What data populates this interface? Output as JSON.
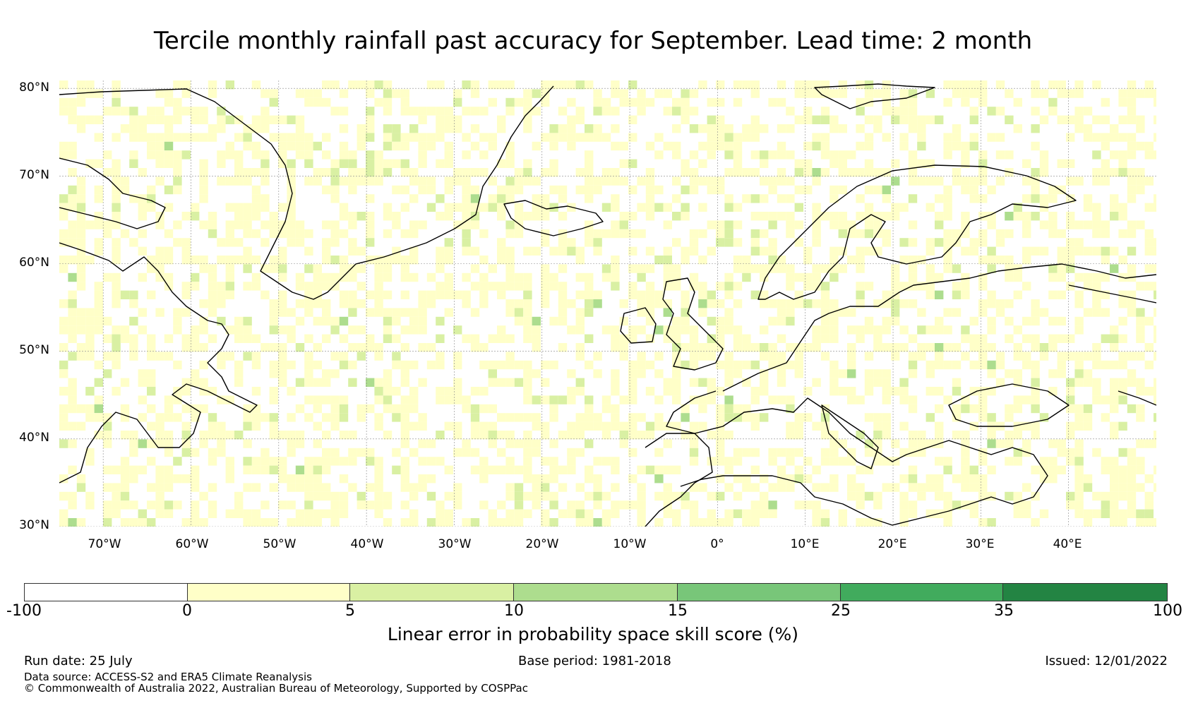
{
  "title": "Tercile monthly rainfall past accuracy for September. Lead time: 2 month",
  "map": {
    "lat_range": [
      30,
      80
    ],
    "lon_range": [
      -75,
      50
    ],
    "lat_labels": [
      "80°N",
      "70°N",
      "60°N",
      "50°N",
      "40°N",
      "30°N"
    ],
    "lon_labels": [
      "70°W",
      "60°W",
      "50°W",
      "40°W",
      "30°W",
      "20°W",
      "10°W",
      "0°",
      "10°E",
      "20°E",
      "30°E",
      "40°E"
    ],
    "gridlines": true,
    "coastline_color": "#000000"
  },
  "colorbar": {
    "label": "Linear error in probability space skill score (%)",
    "ticks": [
      "-100",
      "0",
      "5",
      "10",
      "15",
      "25",
      "35",
      "100"
    ],
    "colors": [
      "#ffffff",
      "#ffffc8",
      "#d9f0a3",
      "#addd8e",
      "#78c679",
      "#41ab5d",
      "#238443"
    ]
  },
  "footer": {
    "run_date": "Run date: 25 July",
    "base_period": "Base period: 1981-2018",
    "issued": "Issued: 12/01/2022",
    "data_source": "Data source: ACCESS-S2 and ERA5 Climate Reanalysis",
    "copyright": "© Commonwealth of Australia 2022, Australian Bureau of Meteorology, Supported by COSPPac"
  }
}
